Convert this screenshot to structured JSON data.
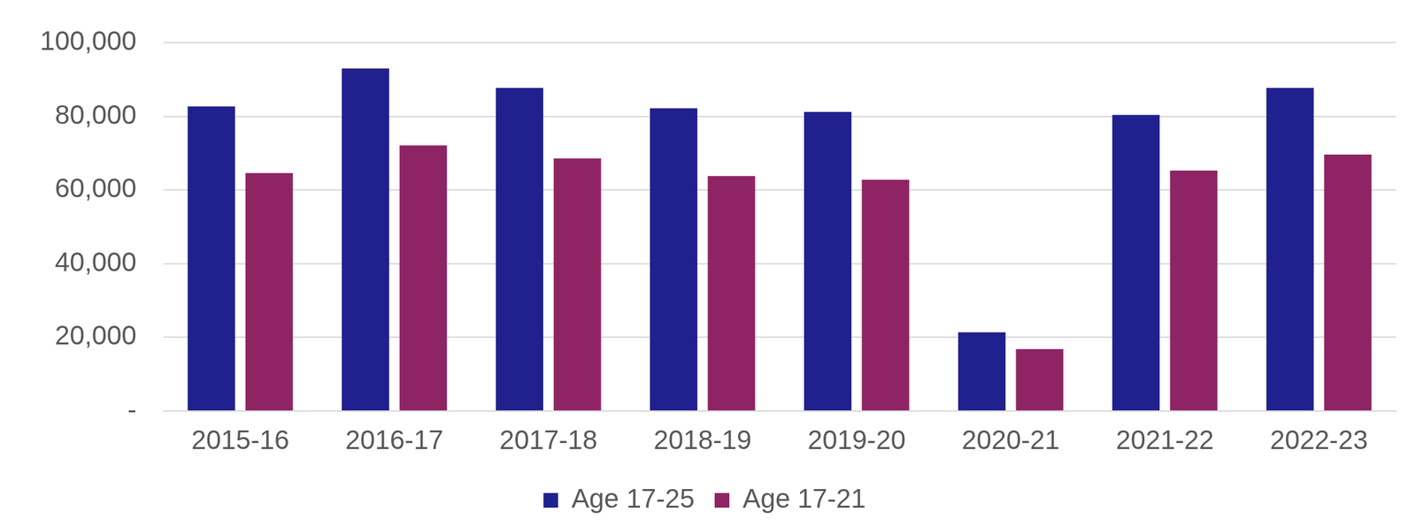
{
  "chart_data": {
    "type": "bar",
    "categories": [
      "2015-16",
      "2016-17",
      "2017-18",
      "2018-19",
      "2019-20",
      "2020-21",
      "2021-22",
      "2022-23"
    ],
    "series": [
      {
        "name": "Age 17-25",
        "color": "#21208f",
        "values": [
          82700,
          93000,
          87700,
          82200,
          81200,
          21400,
          80400,
          87700
        ]
      },
      {
        "name": "Age 17-21",
        "color": "#8f2464",
        "values": [
          64600,
          72100,
          68600,
          63800,
          62800,
          16800,
          65300,
          69600
        ]
      }
    ],
    "ylim": [
      0,
      100000
    ],
    "yticks": [
      {
        "value": 0,
        "label": "-"
      },
      {
        "value": 20000,
        "label": "20,000"
      },
      {
        "value": 40000,
        "label": "40,000"
      },
      {
        "value": 60000,
        "label": "60,000"
      },
      {
        "value": 80000,
        "label": "80,000"
      },
      {
        "value": 100000,
        "label": "100,000"
      }
    ],
    "grid": true,
    "legend": "bottom"
  }
}
